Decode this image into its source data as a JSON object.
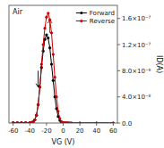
{
  "chart_data": {
    "type": "line",
    "title": "Air",
    "x_label": "VG (V)",
    "y_label": "ID(A)",
    "x": [
      -60,
      -55,
      -50,
      -45,
      -40,
      -38,
      -36,
      -34,
      -32,
      -30,
      -28,
      -26,
      -24,
      -22,
      -20,
      -18,
      -16,
      -14,
      -12,
      -10,
      -8,
      -6,
      -4,
      -2,
      0,
      2,
      4,
      6,
      8,
      10,
      20,
      40,
      60
    ],
    "series": [
      {
        "name": "Forward",
        "color": "#000000",
        "values": [
          5e-10,
          5e-10,
          5e-10,
          5e-10,
          5e-10,
          8e-10,
          2e-09,
          5e-09,
          1.2e-08,
          2.8e-08,
          5.5e-08,
          8.5e-08,
          1.1e-07,
          1.28e-07,
          1.35e-07,
          1.3e-07,
          1.15e-07,
          9e-08,
          6.5e-08,
          4e-08,
          2.2e-08,
          1e-08,
          4e-09,
          1.5e-09,
          5e-10,
          2e-10,
          1e-10,
          5e-11,
          2e-11,
          1e-11,
          1e-11,
          1e-11,
          1e-11
        ]
      },
      {
        "name": "Reverse",
        "color": "#cc0000",
        "values": [
          5e-10,
          5e-10,
          5e-10,
          5e-10,
          5e-10,
          8e-10,
          2e-09,
          5e-09,
          1.2e-08,
          2.8e-08,
          5.5e-08,
          9e-08,
          1.2e-07,
          1.45e-07,
          1.62e-07,
          1.68e-07,
          1.58e-07,
          1.38e-07,
          1.05e-07,
          7e-08,
          4e-08,
          1.8e-08,
          7e-09,
          2e-09,
          5e-10,
          1e-10,
          5e-11,
          2e-11,
          1e-11,
          5e-12,
          1e-12,
          1e-12,
          1e-12
        ]
      }
    ],
    "marker": "circle",
    "xlim": [
      -65,
      65
    ],
    "ylim": [
      0.0,
      1.8e-07
    ],
    "xticks": [
      -60,
      -40,
      -20,
      0,
      20,
      40,
      60
    ],
    "yticks": [
      {
        "value": 0.0,
        "label": "0.0"
      },
      {
        "value": 4e-08,
        "label": "4.0×10⁻⁸"
      },
      {
        "value": 8e-08,
        "label": "8.0×10⁻⁸"
      },
      {
        "value": 1.2e-07,
        "label": "1.2×10⁻⁷"
      },
      {
        "value": 1.6e-07,
        "label": "1.6×10⁻⁷"
      }
    ],
    "arrows": [
      {
        "x": -30,
        "y_start": 8e-08,
        "y_end": 5.5e-08,
        "color": "#000000"
      },
      {
        "x": -16,
        "y_start": 1.38e-07,
        "y_end": 1.58e-07,
        "color": "#cc0000"
      }
    ],
    "grid": false,
    "legend": "upper right"
  }
}
